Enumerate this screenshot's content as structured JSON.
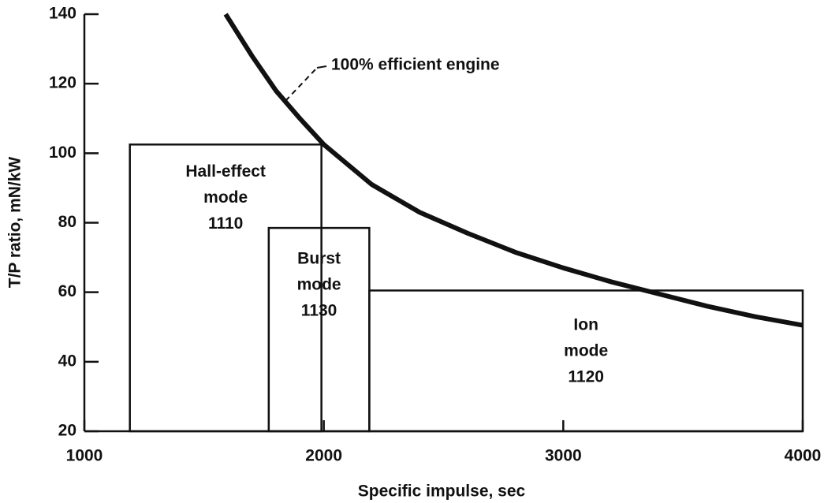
{
  "chart_data": {
    "type": "line",
    "x_label": "Specific impulse, sec",
    "y_label": "T/P ratio, mN/kW",
    "xlim": [
      1000,
      4000
    ],
    "xticks": [
      1000,
      2000,
      3000,
      4000
    ],
    "ylim": [
      20,
      140
    ],
    "yticks": [
      20,
      40,
      60,
      80,
      100,
      120,
      140
    ],
    "grid": false,
    "series": [
      {
        "name": "100% efficient engine",
        "color": "#111111",
        "x": [
          1590,
          1700,
          1800,
          1900,
          2000,
          2200,
          2400,
          2600,
          2800,
          3000,
          3200,
          3400,
          3600,
          3800,
          4000
        ],
        "values": [
          140,
          128,
          118,
          110,
          102.5,
          91,
          83,
          77,
          71.5,
          67,
          63,
          59.5,
          56,
          53,
          50.5
        ]
      }
    ],
    "regions": [
      {
        "label": [
          "Hall-effect",
          "mode",
          "1110"
        ],
        "x": [
          1190,
          1990
        ],
        "y": 102.5
      },
      {
        "label": [
          "Burst",
          "mode",
          "1130"
        ],
        "x": [
          1770,
          2190
        ],
        "y": 78.5
      },
      {
        "label": [
          "Ion",
          "mode",
          "1120"
        ],
        "x": [
          2190,
          4000
        ],
        "y": 60.5
      }
    ]
  }
}
